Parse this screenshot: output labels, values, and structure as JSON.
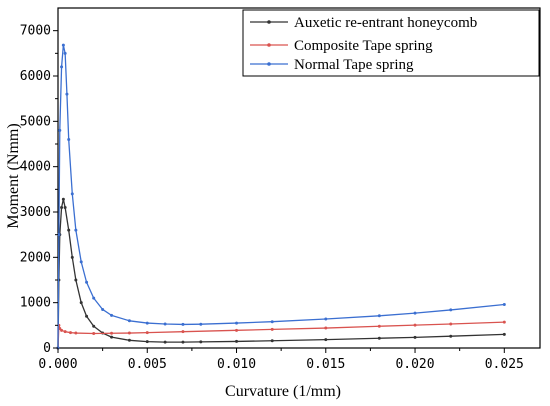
{
  "chart_data": {
    "type": "line",
    "xlabel": "Curvature (1/mm)",
    "ylabel": "Moment (Nmm)",
    "xlim": [
      0.0,
      0.027
    ],
    "ylim": [
      0,
      7500
    ],
    "xticks": [
      0.0,
      0.005,
      0.01,
      0.015,
      0.02,
      0.025
    ],
    "xtick_labels": [
      "0.000",
      "0.005",
      "0.010",
      "0.015",
      "0.020",
      "0.025"
    ],
    "yticks": [
      0,
      1000,
      2000,
      3000,
      4000,
      5000,
      6000,
      7000
    ],
    "ytick_labels": [
      "0",
      "1000",
      "2000",
      "3000",
      "4000",
      "5000",
      "6000",
      "7000"
    ],
    "grid": false,
    "legend_position": "top-right",
    "series": [
      {
        "name": "Auxetic re-entrant honeycomb",
        "color": "#333333",
        "points": [
          [
            0.0,
            0
          ],
          [
            5e-05,
            1500
          ],
          [
            0.0001,
            2500
          ],
          [
            0.0002,
            3100
          ],
          [
            0.0003,
            3280
          ],
          [
            0.0004,
            3100
          ],
          [
            0.0006,
            2600
          ],
          [
            0.0008,
            2000
          ],
          [
            0.001,
            1500
          ],
          [
            0.0013,
            1000
          ],
          [
            0.0016,
            700
          ],
          [
            0.002,
            480
          ],
          [
            0.0025,
            330
          ],
          [
            0.003,
            240
          ],
          [
            0.004,
            170
          ],
          [
            0.005,
            140
          ],
          [
            0.006,
            130
          ],
          [
            0.007,
            130
          ],
          [
            0.008,
            135
          ],
          [
            0.01,
            145
          ],
          [
            0.012,
            160
          ],
          [
            0.015,
            185
          ],
          [
            0.018,
            215
          ],
          [
            0.02,
            235
          ],
          [
            0.022,
            260
          ],
          [
            0.025,
            300
          ]
        ]
      },
      {
        "name": "Composite Tape spring",
        "color": "#d9534f",
        "points": [
          [
            0.0,
            0
          ],
          [
            5e-05,
            500
          ],
          [
            0.0001,
            430
          ],
          [
            0.0002,
            390
          ],
          [
            0.0004,
            360
          ],
          [
            0.0007,
            340
          ],
          [
            0.001,
            330
          ],
          [
            0.002,
            320
          ],
          [
            0.003,
            325
          ],
          [
            0.004,
            330
          ],
          [
            0.005,
            340
          ],
          [
            0.007,
            360
          ],
          [
            0.01,
            390
          ],
          [
            0.012,
            410
          ],
          [
            0.015,
            440
          ],
          [
            0.018,
            480
          ],
          [
            0.02,
            505
          ],
          [
            0.022,
            530
          ],
          [
            0.025,
            570
          ]
        ]
      },
      {
        "name": "Normal Tape spring",
        "color": "#3b6fd1",
        "points": [
          [
            0.0,
            0
          ],
          [
            5e-05,
            2500
          ],
          [
            0.0001,
            4800
          ],
          [
            0.0002,
            6200
          ],
          [
            0.0003,
            6680
          ],
          [
            0.0004,
            6500
          ],
          [
            0.0005,
            5600
          ],
          [
            0.0006,
            4600
          ],
          [
            0.0008,
            3400
          ],
          [
            0.001,
            2600
          ],
          [
            0.0013,
            1900
          ],
          [
            0.0016,
            1450
          ],
          [
            0.002,
            1100
          ],
          [
            0.0025,
            850
          ],
          [
            0.003,
            720
          ],
          [
            0.004,
            600
          ],
          [
            0.005,
            550
          ],
          [
            0.006,
            530
          ],
          [
            0.007,
            520
          ],
          [
            0.008,
            525
          ],
          [
            0.01,
            550
          ],
          [
            0.012,
            580
          ],
          [
            0.015,
            640
          ],
          [
            0.018,
            710
          ],
          [
            0.02,
            770
          ],
          [
            0.022,
            840
          ],
          [
            0.025,
            960
          ]
        ]
      }
    ]
  }
}
